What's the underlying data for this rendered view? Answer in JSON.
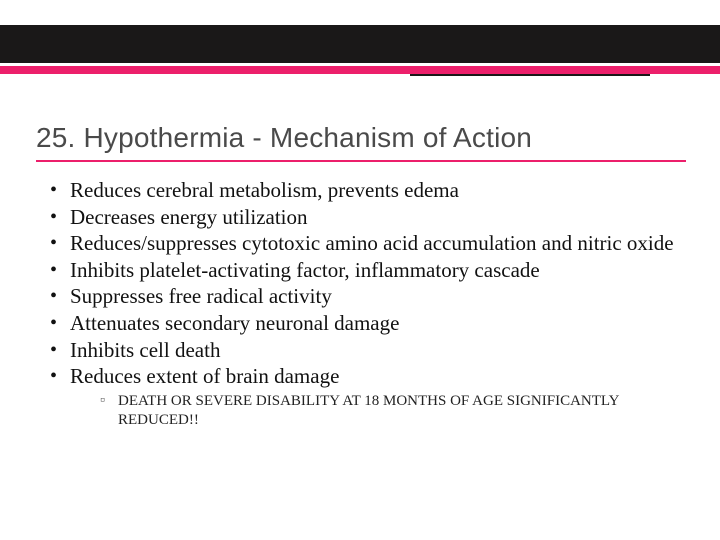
{
  "colors": {
    "pink": "#ec1f6b",
    "dark": "#1a1818",
    "title_text": "#4a4a4a",
    "body_text": "#111111",
    "sub_text": "#222222",
    "background": "#ffffff"
  },
  "typography": {
    "title_family": "Verdana, sans-serif",
    "title_size_pt": 21,
    "body_family": "Georgia, serif",
    "body_size_pt": 16,
    "sub_size_pt": 11
  },
  "title": "25.  Hypothermia - Mechanism of Action",
  "bullets": [
    "Reduces cerebral metabolism, prevents edema",
    "Decreases energy utilization",
    "Reduces/suppresses cytotoxic amino acid accumulation and nitric oxide",
    "Inhibits platelet-activating factor, inflammatory cascade",
    "Suppresses free radical activity",
    "Attenuates secondary neuronal damage",
    "Inhibits cell death",
    "Reduces extent of brain damage"
  ],
  "sub_bullets": [
    "DEATH OR SEVERE DISABILITY AT 18 MONTHS OF AGE SIGNIFICANTLY REDUCED!!"
  ]
}
